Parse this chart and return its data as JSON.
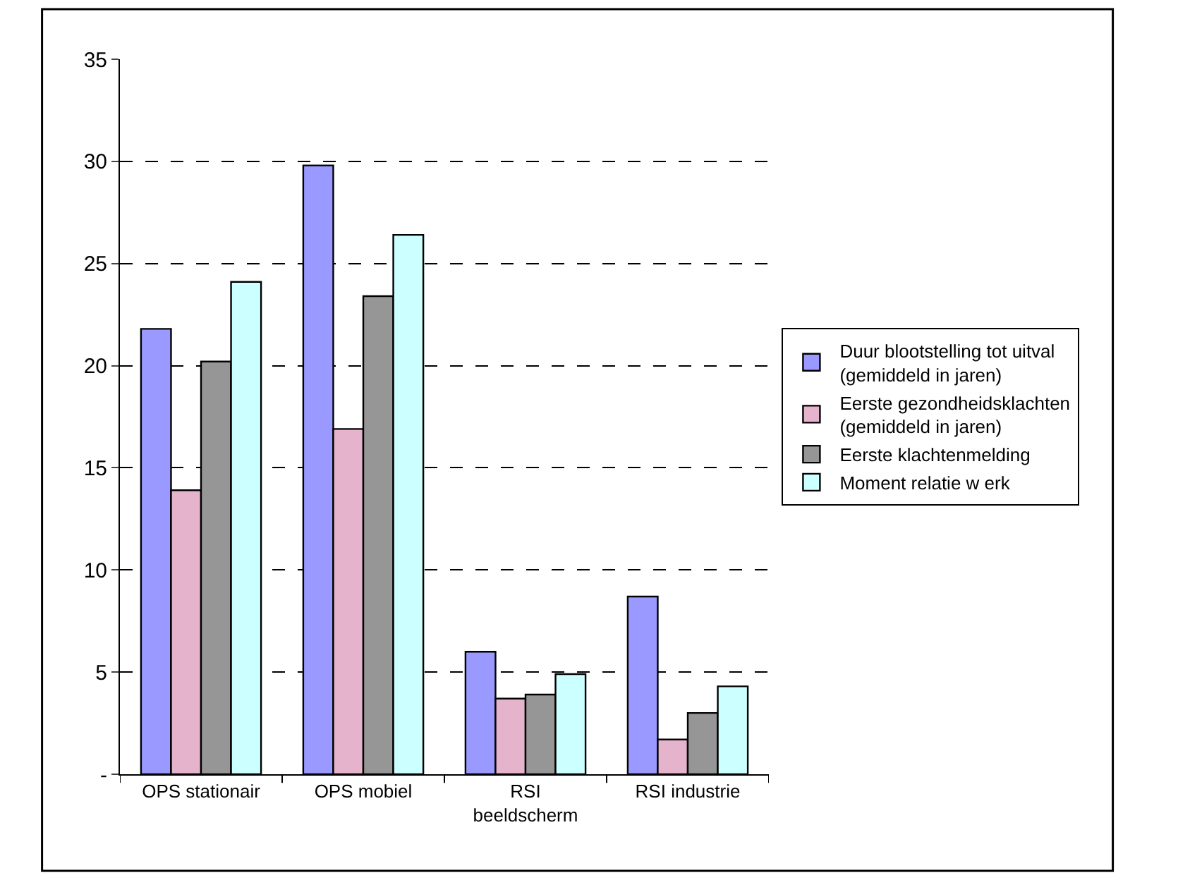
{
  "chart_data": {
    "type": "bar",
    "categories": [
      "OPS stationair",
      "OPS mobiel",
      "RSI\nbeeldscherm",
      "RSI industrie"
    ],
    "series": [
      {
        "name": "Duur blootstelling tot uitval\n(gemiddeld in jaren)",
        "color": "#9999ff",
        "values": [
          21.8,
          29.8,
          6.0,
          8.7
        ]
      },
      {
        "name": "Eerste gezondheidsklachten\n(gemiddeld in jaren)",
        "color": "#e6b3cc",
        "values": [
          13.9,
          16.9,
          3.7,
          1.7
        ]
      },
      {
        "name": "Eerste klachtenmelding",
        "color": "#969696",
        "values": [
          20.2,
          23.4,
          3.9,
          3.0
        ]
      },
      {
        "name": "Moment relatie w erk",
        "color": "#ccffff",
        "values": [
          24.1,
          26.4,
          4.9,
          4.3
        ]
      }
    ],
    "ylim": [
      0,
      35
    ],
    "yticks": [
      {
        "value": 0,
        "label": "-"
      },
      5,
      10,
      15,
      20,
      25,
      30,
      35
    ],
    "grid": "y",
    "legend": "right"
  }
}
